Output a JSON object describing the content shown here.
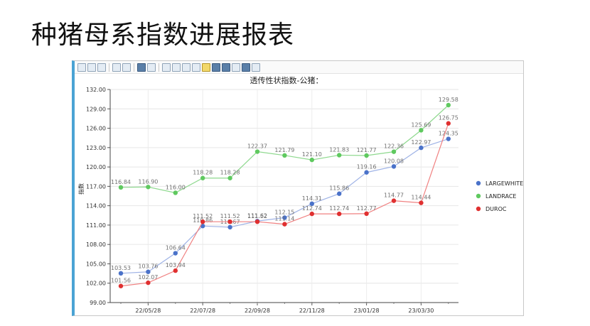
{
  "slide": {
    "title": "种猪母系指数进展报表"
  },
  "toolbar": {
    "buttons": [
      "export-icon",
      "copy-icon",
      "print-icon",
      "chart-type-icon",
      "dropdown-icon",
      "palette-icon",
      "dropdown-icon",
      "pointer-icon",
      "zoom-icon",
      "fit-icon",
      "pan-icon",
      "zoom-in-icon",
      "legend-icon",
      "labels-icon",
      "grid-icon",
      "table-icon",
      "list-icon",
      "settings-icon"
    ]
  },
  "chart_data": {
    "type": "line",
    "title": "透传性状指数-公猪：",
    "ylabel": "指数",
    "xlabel": "",
    "ylim": [
      99,
      132
    ],
    "yticks": [
      "99.00",
      "102.00",
      "105.00",
      "108.00",
      "111.00",
      "114.00",
      "117.00",
      "120.00",
      "123.00",
      "126.00",
      "129.00",
      "132.00"
    ],
    "xticks": [
      "22/05/28",
      "22/07/28",
      "22/09/28",
      "22/11/28",
      "23/01/28",
      "23/03/30"
    ],
    "legend_position": "right",
    "grid": true,
    "series": [
      {
        "name": "LARGEWHITE",
        "color": "#4a72c9",
        "line_color": "#9fb3e6",
        "values": [
          103.53,
          103.76,
          106.64,
          110.86,
          110.67,
          111.62,
          112.15,
          114.31,
          115.86,
          119.16,
          120.08,
          122.97,
          124.35
        ],
        "labels": [
          "103.53",
          "103.76",
          "106.64",
          "110.86",
          "110.67",
          "111.62",
          "112.15",
          "114.31",
          "115.86",
          "119.16",
          "120.08",
          "122.97",
          "124.35"
        ]
      },
      {
        "name": "LANDRACE",
        "color": "#5fc95f",
        "line_color": "#8fd98f",
        "values": [
          116.84,
          116.9,
          116.0,
          118.28,
          118.28,
          122.37,
          121.79,
          121.1,
          121.83,
          121.77,
          122.36,
          125.69,
          129.58
        ],
        "labels": [
          "116.84",
          "116.90",
          "116.00",
          "118.28",
          "118.28",
          "122.37",
          "121.79",
          "121.10",
          "121.83",
          "121.77",
          "122.36",
          "125.69",
          "129.58"
        ]
      },
      {
        "name": "DUROC",
        "color": "#e03030",
        "line_color": "#f08080",
        "values": [
          101.56,
          102.07,
          103.94,
          111.52,
          111.52,
          111.52,
          111.14,
          112.74,
          112.74,
          112.77,
          114.77,
          114.44,
          126.75
        ],
        "labels": [
          "101.56",
          "102.07",
          "103.94",
          "111.52",
          "111.52",
          "111.52",
          "111.14",
          "112.74",
          "112.74",
          "112.77",
          "114.77",
          "114.44",
          "126.75"
        ]
      }
    ]
  }
}
